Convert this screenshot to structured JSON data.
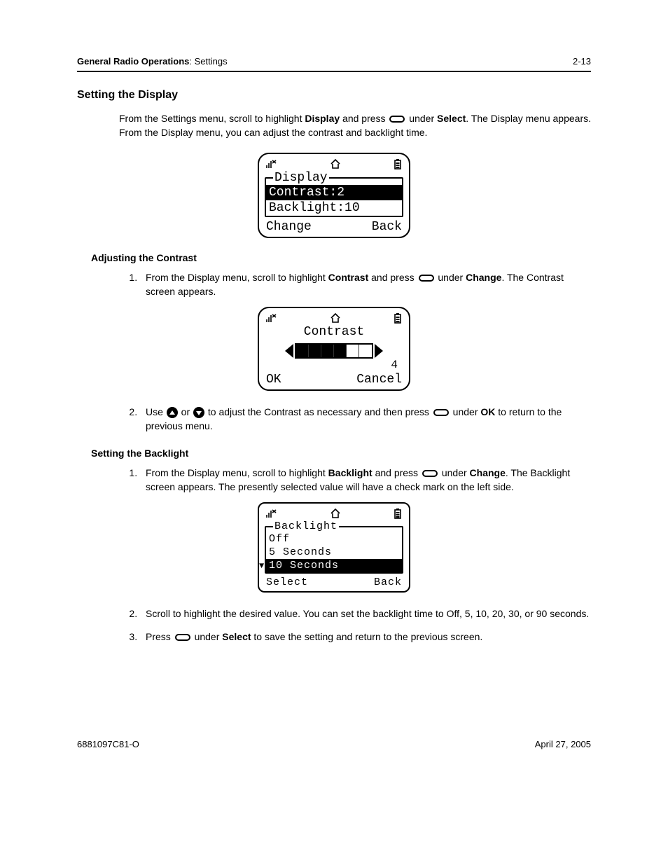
{
  "header": {
    "breadcrumb_bold": "General Radio Operations",
    "breadcrumb_rest": ": Settings",
    "page_num": "2-13"
  },
  "section": {
    "title": "Setting the Display"
  },
  "intro": {
    "part1": "From the Settings menu, scroll to highlight ",
    "display_word": "Display",
    "part2": " and press ",
    "part3": " under ",
    "select_word": "Select",
    "part4": ". The Display menu appears. From the Display menu, you can adjust the contrast and backlight time."
  },
  "screen1": {
    "legend": "Display",
    "row_hl": "Contrast:2",
    "row2": "Backlight:10",
    "soft_left": "Change",
    "soft_right": "Back"
  },
  "contrast_section": {
    "heading": "Adjusting the Contrast",
    "step1_a": "From the Display menu, scroll to highlight ",
    "step1_b": "Contrast",
    "step1_c": " and press ",
    "step1_d": " under ",
    "step1_e": "Change",
    "step1_f": ". The Contrast screen appears.",
    "step2_a": "Use ",
    "step2_b": " or ",
    "step2_c": " to adjust the Contrast as necessary and then press ",
    "step2_d": " under ",
    "step2_e": "OK",
    "step2_f": " to return to the previous menu."
  },
  "screen2": {
    "title": "Contrast",
    "value": "4",
    "filled_segments": 4,
    "total_segments": 6,
    "soft_left": "OK",
    "soft_right": "Cancel"
  },
  "backlight_section": {
    "heading": "Setting the Backlight",
    "step1_a": "From the Display menu, scroll to highlight ",
    "step1_b": "Backlight",
    "step1_c": " and press ",
    "step1_d": " under ",
    "step1_e": "Change",
    "step1_f": ". The Backlight screen appears. The presently selected value will have a check mark on the left side.",
    "step2": "Scroll to highlight the desired value. You can set the backlight time to Off, 5, 10, 20, 30, or 90 seconds.",
    "step3_a": "Press ",
    "step3_b": " under ",
    "step3_c": "Select",
    "step3_d": " to save the setting and return to the previous screen."
  },
  "screen3": {
    "legend": "Backlight",
    "row1": "Off",
    "row2": "5 Seconds",
    "row_hl": "10 Seconds",
    "soft_left": "Select",
    "soft_right": "Back"
  },
  "footer": {
    "doc_id": "6881097C81-O",
    "date": "April 27, 2005"
  }
}
